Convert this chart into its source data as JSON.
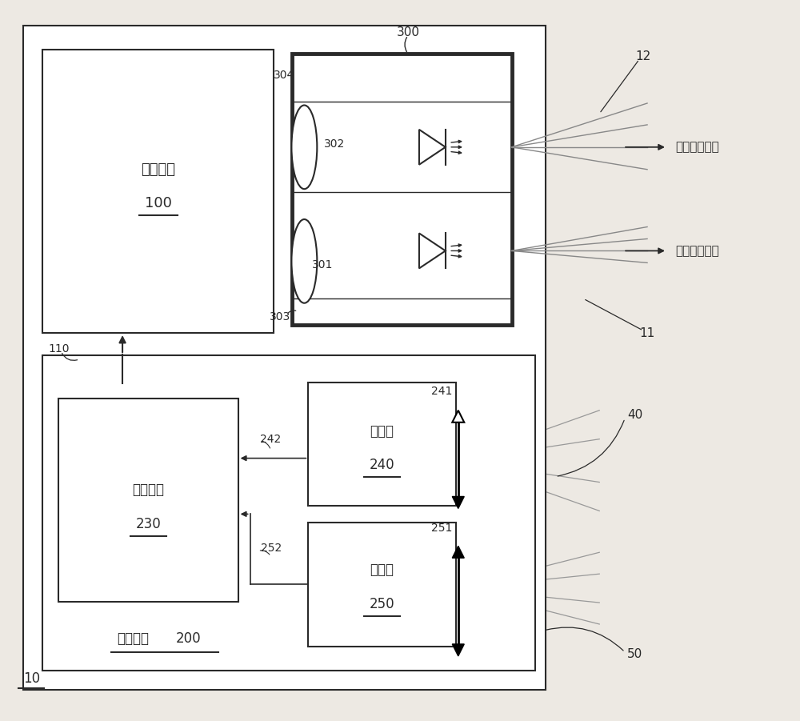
{
  "bg_color": "#ede9e3",
  "line_color": "#2a2a2a",
  "box_color": "#ffffff",
  "figsize": [
    10.0,
    9.01
  ],
  "dpi": 100,
  "labels": {
    "power_module": "电源模块",
    "power_num": "100",
    "control_module": "控制模块",
    "control_num": "200",
    "control_unit": "控制单元",
    "control_unit_num": "230",
    "sensor240": "传感器",
    "sensor240_num": "240",
    "sensor250": "传感器",
    "sensor250_num": "250",
    "label_300": "300",
    "label_304": "304",
    "label_303": "303",
    "label_302": "302",
    "label_301": "301",
    "label_242": "242",
    "label_252": "252",
    "label_241": "241",
    "label_251": "251",
    "label_110": "110",
    "label_12": "12",
    "label_11": "11",
    "label_40": "40",
    "label_50": "50",
    "label_10": "10",
    "wide_beam": "宽的可视光束",
    "narrow_beam": "窄的可视光束"
  }
}
